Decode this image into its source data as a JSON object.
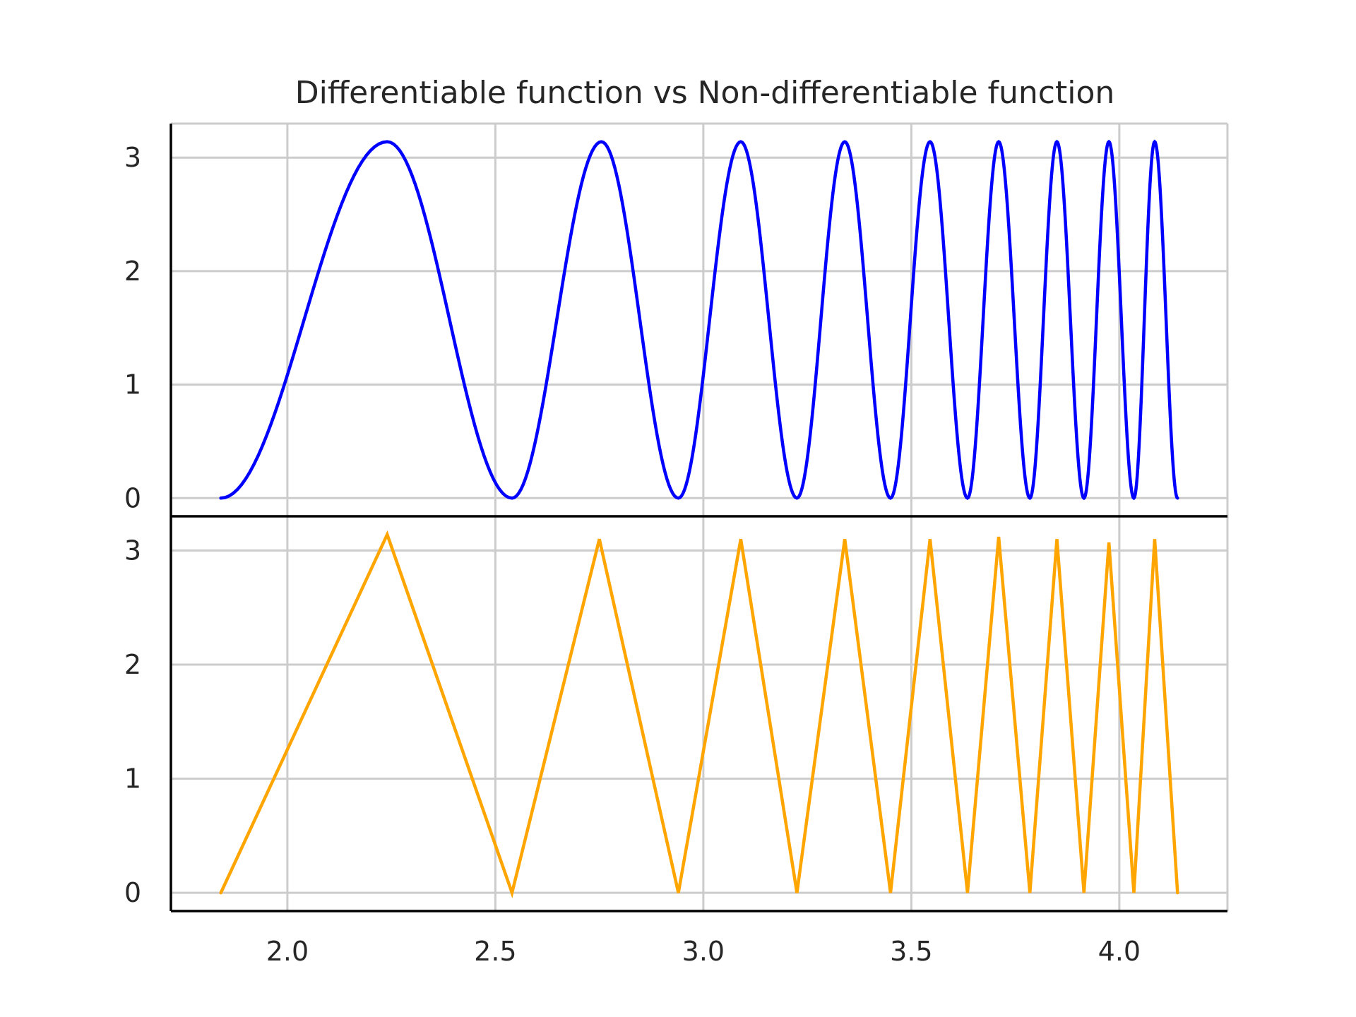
{
  "chart_data": {
    "type": "line",
    "title": "Differentiable function vs Non-differentiable function",
    "xlabel": "",
    "ylabel": "",
    "xlim": [
      1.72,
      4.26
    ],
    "sharex": true,
    "grid": true,
    "xticks": [
      2.0,
      2.5,
      3.0,
      3.5,
      4.0
    ],
    "xtick_labels": [
      "2.0",
      "2.5",
      "3.0",
      "3.5",
      "4.0"
    ],
    "yticks": [
      0,
      1,
      2,
      3
    ],
    "ytick_labels": [
      "0",
      "1",
      "2",
      "3"
    ],
    "panels": [
      {
        "position": "top",
        "ylim": [
          -0.16,
          3.3
        ],
        "series": [
          {
            "color": "#0000ff",
            "style": "smooth",
            "x": [
              1.84,
              2.24,
              2.54,
              2.755,
              2.94,
              3.09,
              3.225,
              3.34,
              3.45,
              3.545,
              3.635,
              3.71,
              3.785,
              3.85,
              3.915,
              3.975,
              4.035,
              4.085,
              4.14
            ],
            "y": [
              0,
              3.14,
              0,
              3.14,
              0,
              3.14,
              0,
              3.14,
              0,
              3.14,
              0,
              3.14,
              0,
              3.14,
              0,
              3.14,
              0,
              3.14,
              0
            ]
          }
        ]
      },
      {
        "position": "bottom",
        "ylim": [
          -0.16,
          3.3
        ],
        "series": [
          {
            "color": "#ffa500",
            "style": "piecewise-linear",
            "x": [
              1.84,
              2.24,
              2.54,
              2.75,
              2.94,
              3.09,
              3.225,
              3.34,
              3.45,
              3.545,
              3.635,
              3.71,
              3.785,
              3.85,
              3.915,
              3.975,
              4.035,
              4.085,
              4.14
            ],
            "y": [
              0,
              3.14,
              0,
              3.1,
              0,
              3.1,
              0,
              3.1,
              0,
              3.1,
              0,
              3.12,
              0,
              3.1,
              0,
              3.07,
              0,
              3.1,
              0
            ]
          }
        ]
      }
    ]
  }
}
